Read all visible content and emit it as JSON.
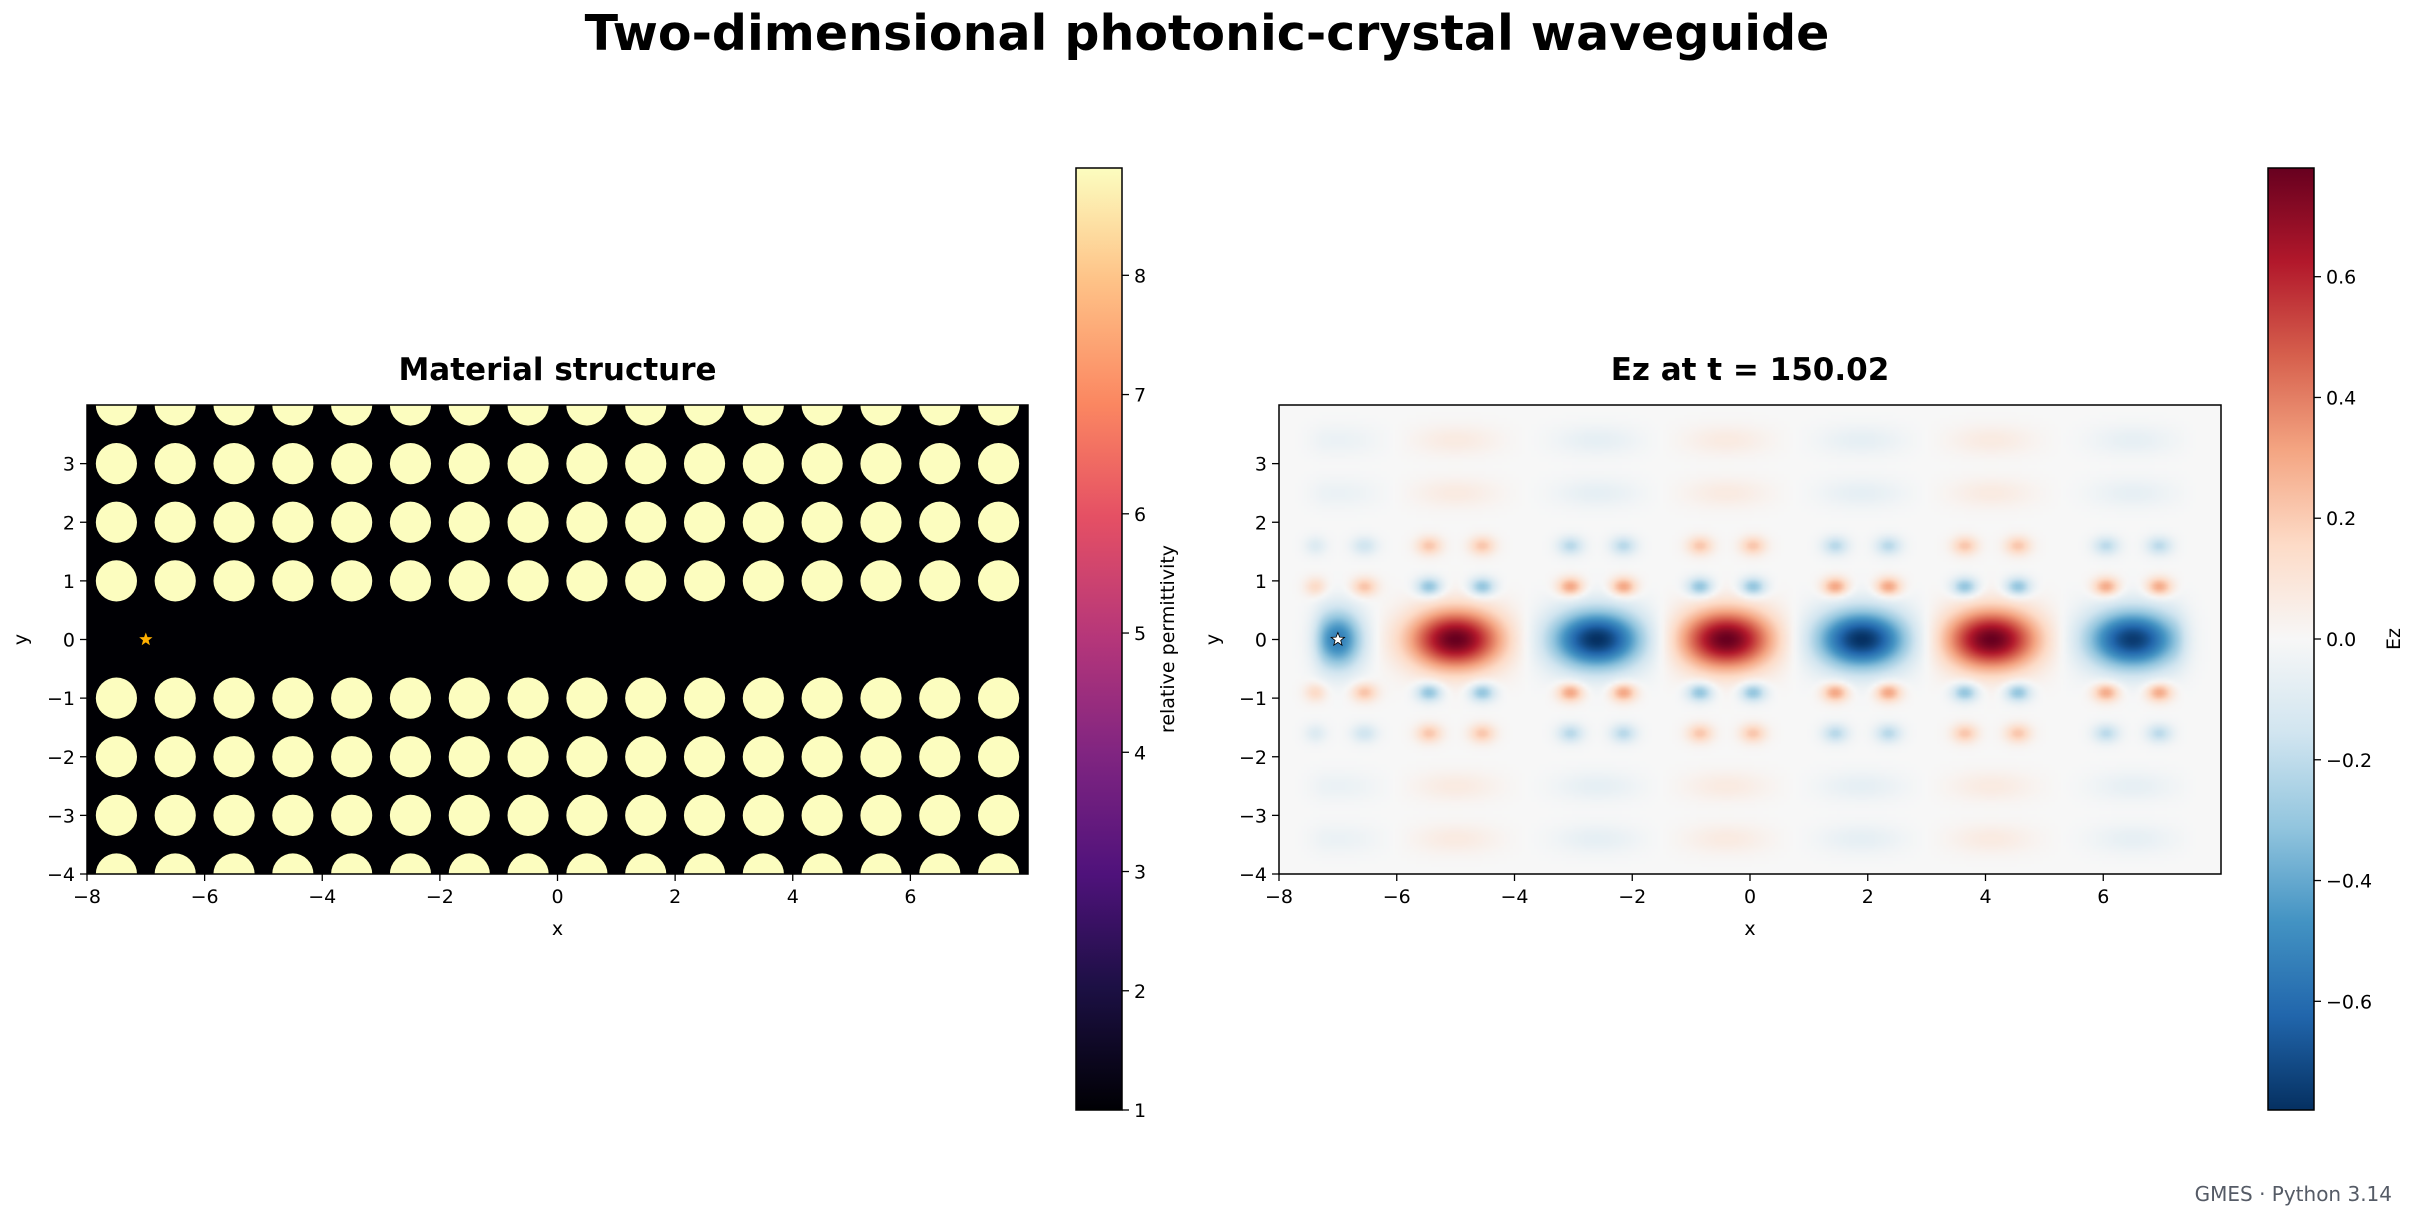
{
  "figure": {
    "suptitle": "Two-dimensional photonic-crystal waveguide",
    "footer": "GMES · Python 3.14"
  },
  "chart_data": [
    {
      "type": "heatmap",
      "title": "Material structure",
      "xlabel": "x",
      "ylabel": "y",
      "xlim": [
        -8,
        8
      ],
      "ylim": [
        -4,
        4
      ],
      "xticks": [
        -8,
        -6,
        -4,
        -2,
        0,
        2,
        4,
        6
      ],
      "yticks": [
        -4,
        -3,
        -2,
        -1,
        0,
        1,
        2,
        3
      ],
      "colormap": "magma",
      "colorbar": {
        "label": "relative permittivity",
        "min": 1,
        "max": 8.9,
        "ticks": [
          1,
          2,
          3,
          4,
          5,
          6,
          7,
          8
        ]
      },
      "background_value": 1,
      "rod_value": 8.9,
      "lattice_constant": 1,
      "rod_radius": 0.35,
      "rod_columns_x": [
        -7.5,
        -6.5,
        -5.5,
        -4.5,
        -3.5,
        -2.5,
        -1.5,
        -0.5,
        0.5,
        1.5,
        2.5,
        3.5,
        4.5,
        5.5,
        6.5,
        7.5
      ],
      "rod_rows_y": [
        -4,
        -3,
        -2,
        -1,
        1,
        2,
        3,
        4
      ],
      "source_marker": {
        "x": -7,
        "y": 0,
        "symbol": "star",
        "color": "#ffb000"
      }
    },
    {
      "type": "heatmap",
      "title": "Ez at t = 150.02",
      "xlabel": "x",
      "ylabel": "y",
      "xlim": [
        -8,
        8
      ],
      "ylim": [
        -4,
        4
      ],
      "xticks": [
        -8,
        -6,
        -4,
        -2,
        0,
        2,
        4,
        6
      ],
      "yticks": [
        -4,
        -3,
        -2,
        -1,
        0,
        1,
        2,
        3
      ],
      "colormap": "RdBu_r",
      "colorbar": {
        "label": "Ez",
        "min": -0.78,
        "max": 0.78,
        "ticks": [
          -0.6,
          -0.4,
          -0.2,
          0.0,
          0.2,
          0.4,
          0.6
        ]
      },
      "guided_mode_lobes": [
        {
          "x": -7.0,
          "value": -0.55
        },
        {
          "x": -5.0,
          "value": 0.78
        },
        {
          "x": -2.6,
          "value": -0.78
        },
        {
          "x": -0.4,
          "value": 0.78
        },
        {
          "x": 1.9,
          "value": -0.78
        },
        {
          "x": 4.1,
          "value": 0.78
        },
        {
          "x": 6.5,
          "value": -0.75
        }
      ],
      "source_marker": {
        "x": -7,
        "y": 0,
        "symbol": "star",
        "color": "#ffffff"
      }
    }
  ]
}
